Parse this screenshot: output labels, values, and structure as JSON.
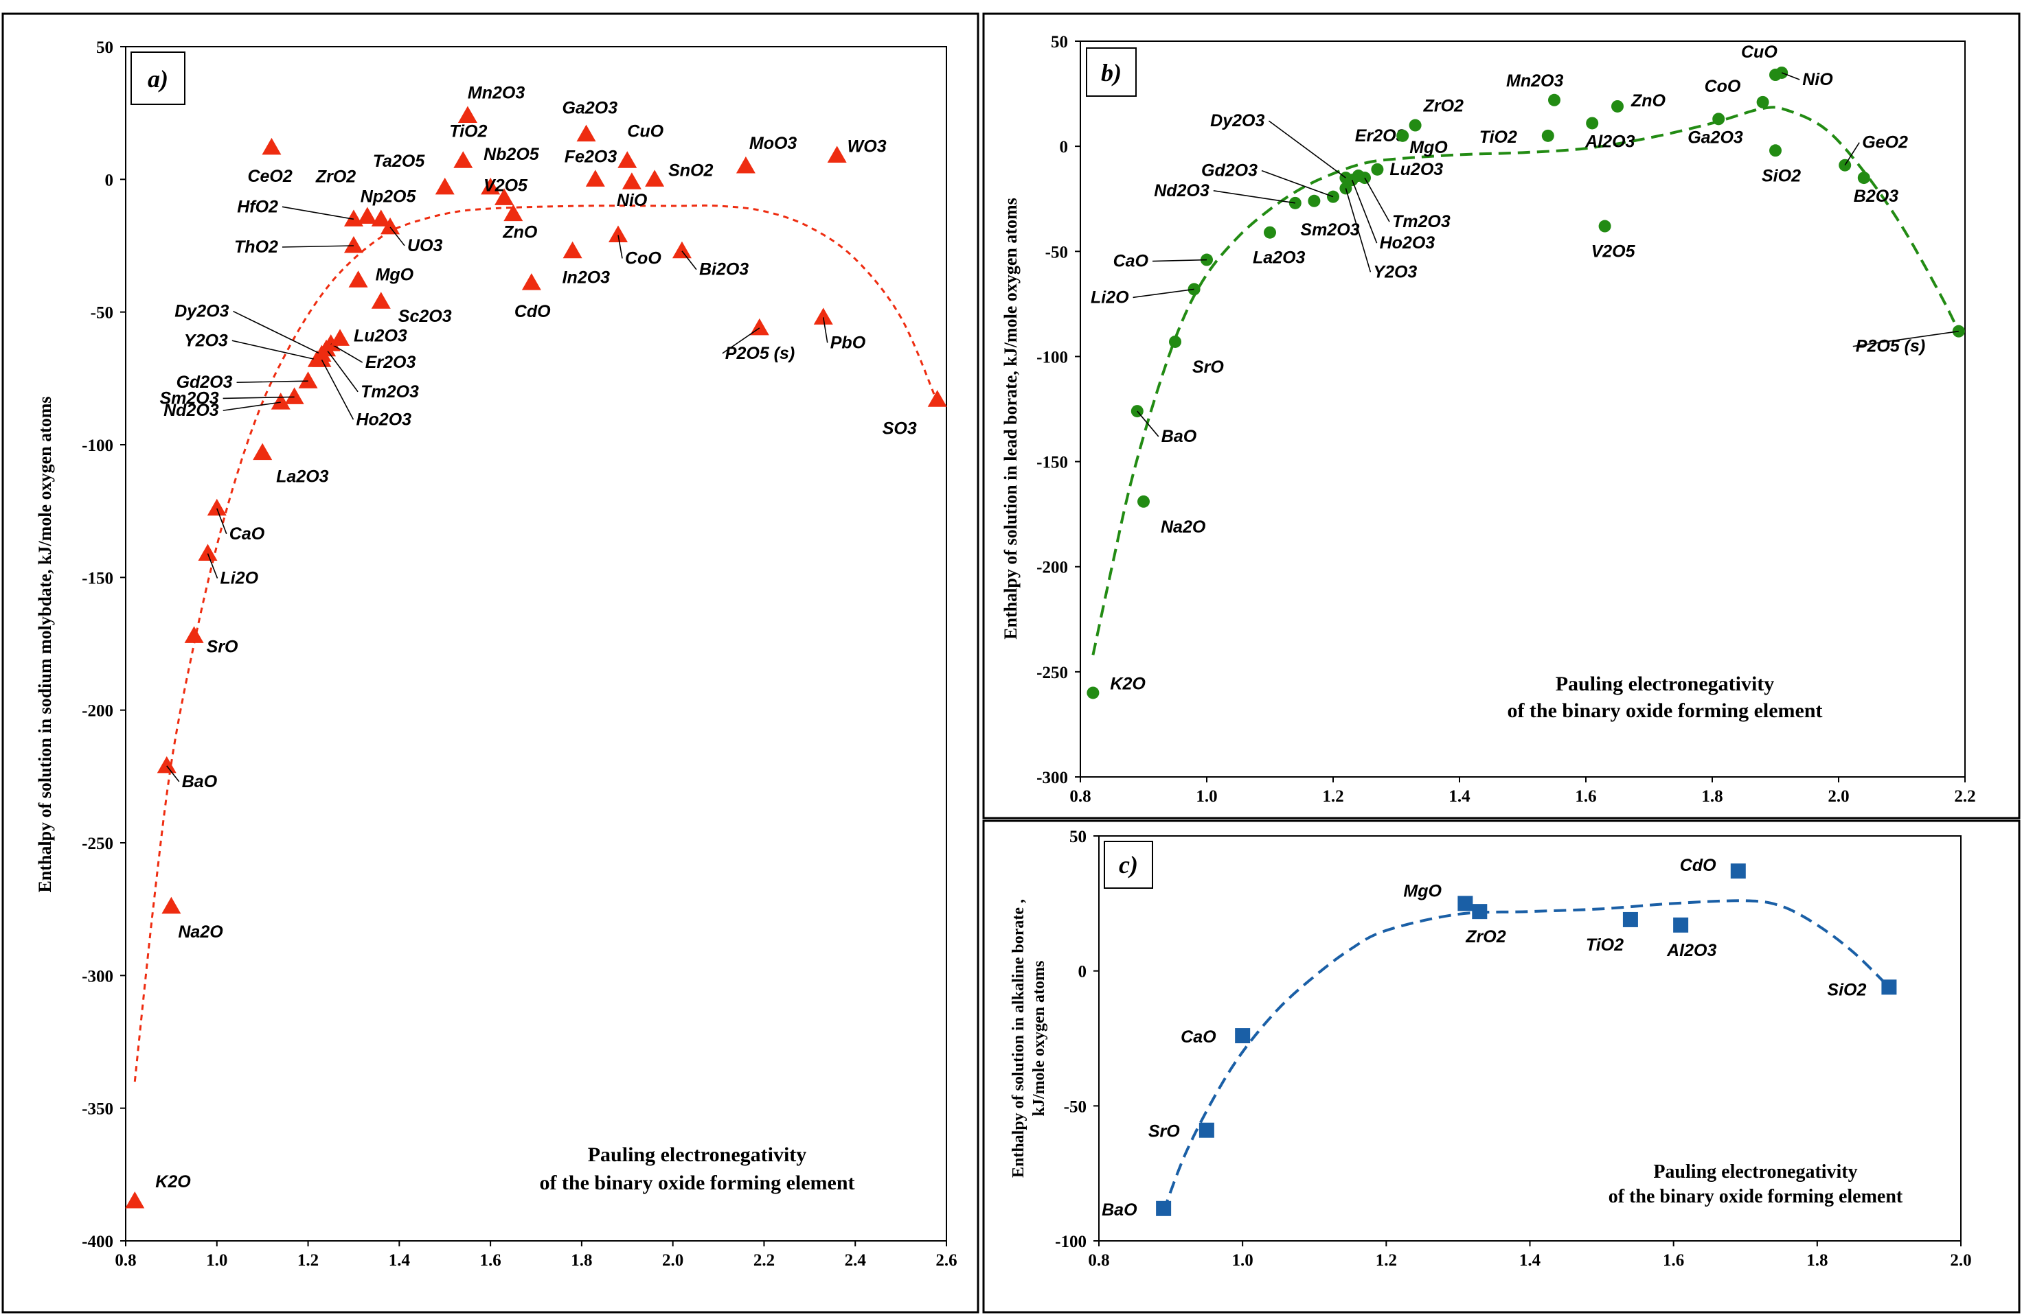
{
  "chart_data": [
    {
      "id": "a",
      "panel_label": "a)",
      "type": "scatter",
      "marker": "triangle",
      "color": "#ee2c10",
      "ylabel": "Enthalpy of solution in sodium molybdate, kJ/mole oxygen atoms",
      "note": [
        "Pauling electronegativity",
        "of the binary oxide forming element"
      ],
      "xlim": [
        0.8,
        2.6
      ],
      "ylim": [
        -400,
        50
      ],
      "xticks": [
        0.8,
        1.0,
        1.2,
        1.4,
        1.6,
        1.8,
        2.0,
        2.2,
        2.4,
        2.6
      ],
      "xtick_labels": [
        "0.8",
        "1.0",
        "1.2",
        "1.4",
        "1.6",
        "1.8",
        "2.0",
        "2.2",
        "2.4",
        "2.6"
      ],
      "yticks": [
        -400,
        -350,
        -300,
        -250,
        -200,
        -150,
        -100,
        -50,
        0,
        50
      ],
      "ytick_labels": [
        "-400",
        "-350",
        "-300",
        "-250",
        "-200",
        "-150",
        "-100",
        "-50",
        "0",
        "50"
      ],
      "points": [
        {
          "label": "K2O",
          "x": 0.82,
          "y": -385
        },
        {
          "label": "Na2O",
          "x": 0.9,
          "y": -274
        },
        {
          "label": "BaO",
          "x": 0.89,
          "y": -221
        },
        {
          "label": "SrO",
          "x": 0.95,
          "y": -172
        },
        {
          "label": "Li2O",
          "x": 0.98,
          "y": -141
        },
        {
          "label": "CaO",
          "x": 1.0,
          "y": -124
        },
        {
          "label": "La2O3",
          "x": 1.1,
          "y": -103
        },
        {
          "label": "Nd2O3",
          "x": 1.14,
          "y": -84
        },
        {
          "label": "Sm2O3",
          "x": 1.17,
          "y": -82
        },
        {
          "label": "Gd2O3",
          "x": 1.2,
          "y": -76
        },
        {
          "label": "Y2O3",
          "x": 1.22,
          "y": -68
        },
        {
          "label": "Dy2O3",
          "x": 1.23,
          "y": -66
        },
        {
          "label": "Ho2O3",
          "x": 1.23,
          "y": -68
        },
        {
          "label": "Tm2O3",
          "x": 1.24,
          "y": -64
        },
        {
          "label": "Er2O3",
          "x": 1.25,
          "y": -62
        },
        {
          "label": "Lu2O3",
          "x": 1.27,
          "y": -60
        },
        {
          "label": "Sc2O3",
          "x": 1.36,
          "y": -46
        },
        {
          "label": "MgO",
          "x": 1.31,
          "y": -38
        },
        {
          "label": "ThO2",
          "x": 1.3,
          "y": -25
        },
        {
          "label": "HfO2",
          "x": 1.3,
          "y": -15
        },
        {
          "label": "ZrO2",
          "x": 1.33,
          "y": -14
        },
        {
          "label": "Np2O5",
          "x": 1.36,
          "y": -15
        },
        {
          "label": "UO3",
          "x": 1.38,
          "y": -18
        },
        {
          "label": "CeO2",
          "x": 1.12,
          "y": 12
        },
        {
          "label": "Ta2O5",
          "x": 1.5,
          "y": -3
        },
        {
          "label": "TiO2",
          "x": 1.54,
          "y": 7
        },
        {
          "label": "Mn2O3",
          "x": 1.55,
          "y": 24
        },
        {
          "label": "Nb2O5",
          "x": 1.6,
          "y": -3
        },
        {
          "label": "V2O5",
          "x": 1.63,
          "y": -7
        },
        {
          "label": "ZnO",
          "x": 1.65,
          "y": -13
        },
        {
          "label": "CdO",
          "x": 1.69,
          "y": -39
        },
        {
          "label": "In2O3",
          "x": 1.78,
          "y": -27
        },
        {
          "label": "Ga2O3",
          "x": 1.81,
          "y": 17
        },
        {
          "label": "Fe2O3",
          "x": 1.83,
          "y": 0
        },
        {
          "label": "CoO",
          "x": 1.88,
          "y": -21
        },
        {
          "label": "CuO",
          "x": 1.9,
          "y": 7
        },
        {
          "label": "NiO",
          "x": 1.91,
          "y": -1
        },
        {
          "label": "SnO2",
          "x": 1.96,
          "y": 0
        },
        {
          "label": "Bi2O3",
          "x": 2.02,
          "y": -27
        },
        {
          "label": "MoO3",
          "x": 2.16,
          "y": 5
        },
        {
          "label": "P2O5 (s)",
          "x": 2.19,
          "y": -56
        },
        {
          "label": "PbO",
          "x": 2.33,
          "y": -52
        },
        {
          "label": "WO3",
          "x": 2.36,
          "y": 9
        },
        {
          "label": "SO3",
          "x": 2.58,
          "y": -83
        }
      ],
      "trend": [
        [
          0.82,
          -340
        ],
        [
          0.86,
          -275
        ],
        [
          0.9,
          -220
        ],
        [
          0.95,
          -175
        ],
        [
          1.0,
          -138
        ],
        [
          1.05,
          -108
        ],
        [
          1.1,
          -84
        ],
        [
          1.15,
          -66
        ],
        [
          1.2,
          -51
        ],
        [
          1.25,
          -39
        ],
        [
          1.3,
          -30
        ],
        [
          1.35,
          -23
        ],
        [
          1.4,
          -18
        ],
        [
          1.5,
          -13
        ],
        [
          1.6,
          -11
        ],
        [
          1.8,
          -10
        ],
        [
          2.0,
          -10
        ],
        [
          2.1,
          -10
        ],
        [
          2.2,
          -12
        ],
        [
          2.3,
          -18
        ],
        [
          2.4,
          -30
        ],
        [
          2.5,
          -52
        ],
        [
          2.58,
          -84
        ]
      ]
    },
    {
      "id": "b",
      "panel_label": "b)",
      "type": "scatter",
      "marker": "circle",
      "color": "#228b13",
      "ylabel": "Enthalpy of solution in lead borate,  kJ/mole oxygen atoms",
      "note": [
        "Pauling electronegativity",
        "of the binary oxide forming element"
      ],
      "xlim": [
        0.8,
        2.2
      ],
      "ylim": [
        -300,
        50
      ],
      "xticks": [
        0.8,
        1.0,
        1.2,
        1.4,
        1.6,
        1.8,
        2.0,
        2.2
      ],
      "xtick_labels": [
        "0.8",
        "1.0",
        "1.2",
        "1.4",
        "1.6",
        "1.8",
        "2.0",
        "2.2"
      ],
      "yticks": [
        -300,
        -250,
        -200,
        -150,
        -100,
        -50,
        0,
        50
      ],
      "ytick_labels": [
        "-300",
        "-250",
        "-200",
        "-150",
        "-100",
        "-50",
        "0",
        "50"
      ],
      "points": [
        {
          "label": "K2O",
          "x": 0.82,
          "y": -260
        },
        {
          "label": "Na2O",
          "x": 0.9,
          "y": -169
        },
        {
          "label": "BaO",
          "x": 0.89,
          "y": -126
        },
        {
          "label": "SrO",
          "x": 0.95,
          "y": -93
        },
        {
          "label": "Li2O",
          "x": 0.98,
          "y": -68
        },
        {
          "label": "CaO",
          "x": 1.0,
          "y": -54
        },
        {
          "label": "La2O3",
          "x": 1.1,
          "y": -41
        },
        {
          "label": "Nd2O3",
          "x": 1.14,
          "y": -27
        },
        {
          "label": "Sm2O3",
          "x": 1.17,
          "y": -26
        },
        {
          "label": "Gd2O3",
          "x": 1.2,
          "y": -24
        },
        {
          "label": "Y2O3",
          "x": 1.22,
          "y": -20
        },
        {
          "label": "Dy2O3",
          "x": 1.22,
          "y": -15
        },
        {
          "label": "Ho2O3",
          "x": 1.23,
          "y": -16
        },
        {
          "label": "Tm2O3",
          "x": 1.25,
          "y": -15
        },
        {
          "label": "Er2O3",
          "x": 1.24,
          "y": -14
        },
        {
          "label": "Lu2O3",
          "x": 1.27,
          "y": -11
        },
        {
          "label": "MgO",
          "x": 1.31,
          "y": 5
        },
        {
          "label": "ZrO2",
          "x": 1.33,
          "y": 10
        },
        {
          "label": "TiO2",
          "x": 1.54,
          "y": 5
        },
        {
          "label": "Mn2O3",
          "x": 1.55,
          "y": 22
        },
        {
          "label": "Al2O3",
          "x": 1.61,
          "y": 11
        },
        {
          "label": "V2O5",
          "x": 1.63,
          "y": -38
        },
        {
          "label": "ZnO",
          "x": 1.65,
          "y": 19
        },
        {
          "label": "Ga2O3",
          "x": 1.81,
          "y": 13
        },
        {
          "label": "CoO",
          "x": 1.88,
          "y": 21
        },
        {
          "label": "CuO",
          "x": 1.9,
          "y": 34
        },
        {
          "label": "NiO",
          "x": 1.91,
          "y": 35
        },
        {
          "label": "SiO2",
          "x": 1.9,
          "y": -2
        },
        {
          "label": "GeO2",
          "x": 2.01,
          "y": -9
        },
        {
          "label": "B2O3",
          "x": 2.04,
          "y": -15
        },
        {
          "label": "P2O5 (s)",
          "x": 2.19,
          "y": -88
        }
      ],
      "trend": [
        [
          0.82,
          -242
        ],
        [
          0.85,
          -200
        ],
        [
          0.88,
          -160
        ],
        [
          0.92,
          -118
        ],
        [
          0.96,
          -84
        ],
        [
          1.0,
          -61
        ],
        [
          1.05,
          -43
        ],
        [
          1.1,
          -30
        ],
        [
          1.15,
          -20
        ],
        [
          1.2,
          -13
        ],
        [
          1.25,
          -8
        ],
        [
          1.3,
          -6
        ],
        [
          1.4,
          -4
        ],
        [
          1.5,
          -3
        ],
        [
          1.6,
          -1
        ],
        [
          1.7,
          4
        ],
        [
          1.8,
          11
        ],
        [
          1.88,
          18
        ],
        [
          1.92,
          17
        ],
        [
          1.98,
          8
        ],
        [
          2.04,
          -12
        ],
        [
          2.1,
          -38
        ],
        [
          2.16,
          -70
        ],
        [
          2.19,
          -88
        ]
      ]
    },
    {
      "id": "c",
      "panel_label": "c)",
      "type": "scatter",
      "marker": "square",
      "color": "#1a5fa6",
      "ylabel": "Enthalpy of solution in alkaline borate , kJ/mole oxygen atoms",
      "ylabel_lines": [
        "Enthalpy of solution in alkaline borate ,",
        "kJ/mole oxygen atoms"
      ],
      "note": [
        "Pauling electronegativity",
        "of the binary oxide forming element"
      ],
      "xlim": [
        0.8,
        2.0
      ],
      "ylim": [
        -100,
        50
      ],
      "xticks": [
        0.8,
        1.0,
        1.2,
        1.4,
        1.6,
        1.8,
        2.0
      ],
      "xtick_labels": [
        "0.8",
        "1.0",
        "1.2",
        "1.4",
        "1.6",
        "1.8",
        "2.0"
      ],
      "yticks": [
        -100,
        -50,
        0,
        50
      ],
      "ytick_labels": [
        "-100",
        "-50",
        "0",
        "50"
      ],
      "points": [
        {
          "label": "BaO",
          "x": 0.89,
          "y": -88
        },
        {
          "label": "SrO",
          "x": 0.95,
          "y": -59
        },
        {
          "label": "CaO",
          "x": 1.0,
          "y": -24
        },
        {
          "label": "MgO",
          "x": 1.31,
          "y": 25
        },
        {
          "label": "ZrO2",
          "x": 1.33,
          "y": 22
        },
        {
          "label": "TiO2",
          "x": 1.54,
          "y": 19
        },
        {
          "label": "Al2O3",
          "x": 1.61,
          "y": 17
        },
        {
          "label": "CdO",
          "x": 1.69,
          "y": 37
        },
        {
          "label": "SiO2",
          "x": 1.9,
          "y": -6
        }
      ],
      "trend": [
        [
          0.89,
          -89
        ],
        [
          0.92,
          -68
        ],
        [
          0.96,
          -47
        ],
        [
          1.0,
          -30
        ],
        [
          1.05,
          -14
        ],
        [
          1.1,
          -2
        ],
        [
          1.15,
          8
        ],
        [
          1.2,
          15
        ],
        [
          1.3,
          21
        ],
        [
          1.4,
          22
        ],
        [
          1.5,
          23
        ],
        [
          1.6,
          25
        ],
        [
          1.7,
          26
        ],
        [
          1.75,
          24
        ],
        [
          1.8,
          17
        ],
        [
          1.85,
          7
        ],
        [
          1.9,
          -6
        ]
      ]
    }
  ]
}
